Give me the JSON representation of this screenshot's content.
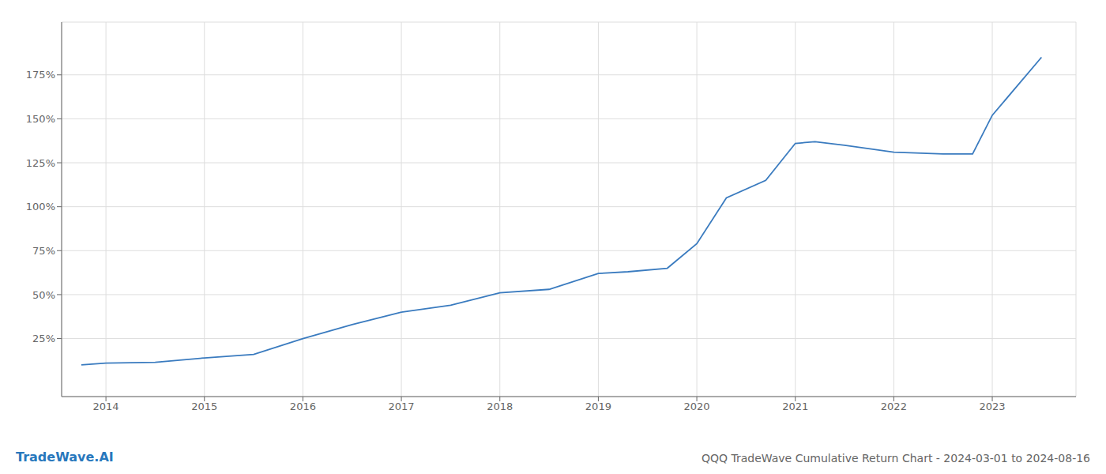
{
  "chart_data": {
    "type": "line",
    "title": "QQQ TradeWave Cumulative Return Chart - 2024-03-01 to 2024-08-16",
    "annotations": [
      "TradeWave.AI"
    ],
    "x": [
      2013.75,
      2014.0,
      2014.5,
      2015.0,
      2015.5,
      2016.0,
      2016.5,
      2017.0,
      2017.5,
      2018.0,
      2018.5,
      2019.0,
      2019.3,
      2019.7,
      2020.0,
      2020.3,
      2020.7,
      2021.0,
      2021.2,
      2021.5,
      2022.0,
      2022.5,
      2022.8,
      2023.0,
      2023.5
    ],
    "values": [
      10,
      11,
      11.5,
      14,
      16,
      25,
      33,
      40,
      44,
      51,
      53,
      62,
      63,
      65,
      79,
      105,
      115,
      136,
      137,
      135,
      131,
      130,
      130,
      152,
      185
    ],
    "color": "#3a7bbf",
    "xlim": [
      2013.55,
      2023.85
    ],
    "xticks": [
      2014,
      2015,
      2016,
      2017,
      2018,
      2019,
      2020,
      2021,
      2022,
      2023
    ],
    "ylim": [
      -8,
      205
    ],
    "yticks": [
      {
        "value": 25,
        "label": "25%"
      },
      {
        "value": 50,
        "label": "50%"
      },
      {
        "value": 75,
        "label": "75%"
      },
      {
        "value": 100,
        "label": "100%"
      },
      {
        "value": 125,
        "label": "125%"
      },
      {
        "value": 150,
        "label": "150%"
      },
      {
        "value": 175,
        "label": "175%"
      }
    ],
    "grid": true
  }
}
